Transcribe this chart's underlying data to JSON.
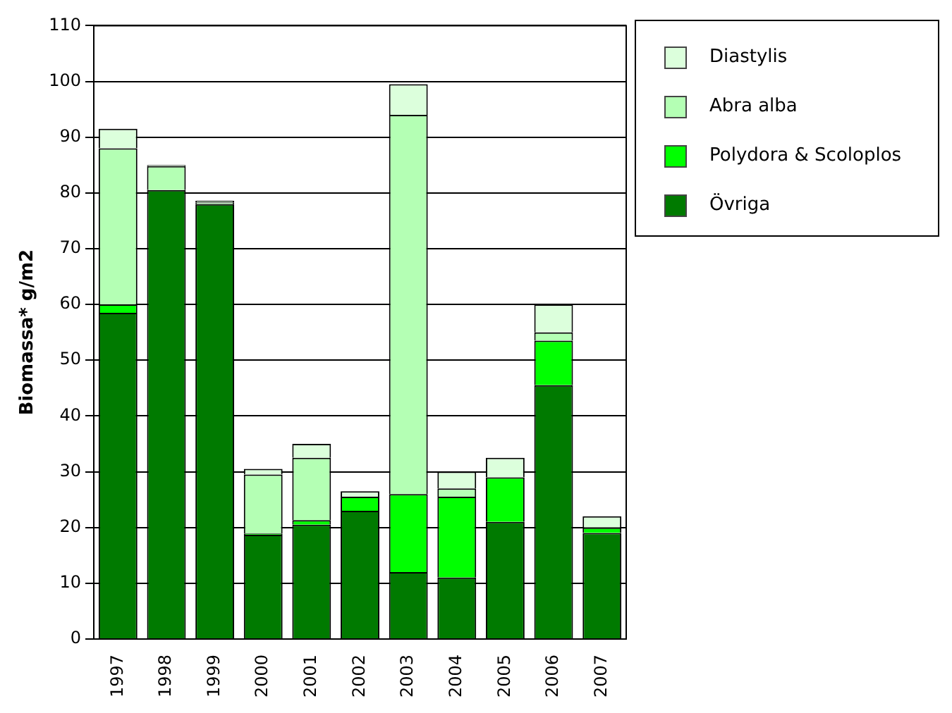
{
  "chart_data": {
    "type": "bar",
    "stacked": true,
    "ylabel": "Biomassa* g/m2",
    "categories": [
      "1997",
      "1998",
      "1999",
      "2000",
      "2001",
      "2002",
      "2003",
      "2004",
      "2005",
      "2006",
      "2007"
    ],
    "series": [
      {
        "name": "Övriga",
        "color": "#007a00",
        "values": [
          58.5,
          80.5,
          78,
          18.7,
          20.5,
          23,
          12,
          11,
          21,
          45.5,
          19
        ]
      },
      {
        "name": "Polydora & Scoloplos",
        "color": "#00ff00",
        "values": [
          1.5,
          0,
          0,
          0.2,
          0.8,
          2.5,
          14,
          14.5,
          8,
          8,
          1
        ]
      },
      {
        "name": "Abra alba",
        "color": "#b4ffb4",
        "values": [
          28,
          4.3,
          0.3,
          10.6,
          11.2,
          0,
          68,
          1.5,
          0,
          1.5,
          0
        ]
      },
      {
        "name": "Diastylis",
        "color": "#dcffdc",
        "values": [
          3.5,
          0.2,
          0.3,
          1,
          2.5,
          1,
          5.5,
          3,
          3.5,
          5,
          2
        ]
      }
    ],
    "ylim": [
      0,
      110
    ],
    "yticks": [
      0,
      10,
      20,
      30,
      40,
      50,
      60,
      70,
      80,
      90,
      100,
      110
    ],
    "grid": "y",
    "legend": "top right"
  }
}
